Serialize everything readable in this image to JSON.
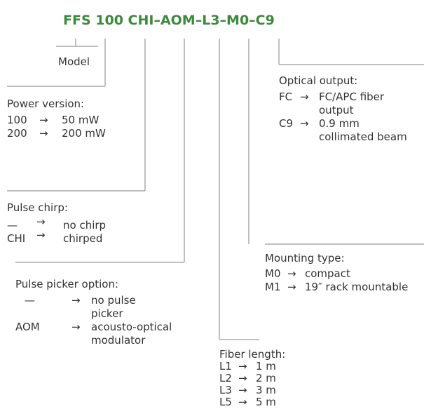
{
  "code": "FFS 100 CHI–AOM–L3–M0–C9",
  "arrow": "→",
  "groups": [
    {
      "title": "Model",
      "rows": []
    },
    {
      "title": "Power version:",
      "rows": [
        [
          "100",
          [
            "50 mW"
          ]
        ],
        [
          "200",
          [
            "200 mW"
          ]
        ]
      ]
    },
    {
      "title": "Pulse chirp:",
      "rows": [
        [
          "—",
          [
            "no chirp"
          ]
        ],
        [
          "CHI",
          [
            "chirped"
          ]
        ]
      ]
    },
    {
      "title": "Pulse picker option:",
      "rows": [
        [
          "—",
          [
            "no pulse",
            "picker"
          ]
        ],
        [
          "AOM",
          [
            "acousto-optical",
            "modulator"
          ]
        ]
      ]
    },
    {
      "title": "Fiber length:",
      "rows": [
        [
          "L1",
          [
            "1 m"
          ]
        ],
        [
          "L2",
          [
            "2 m"
          ]
        ],
        [
          "L3",
          [
            "3 m"
          ]
        ],
        [
          "L5",
          [
            "5 m"
          ]
        ]
      ]
    },
    {
      "title": "Mounting type:",
      "rows": [
        [
          "M0",
          [
            "compact"
          ]
        ],
        [
          "M1",
          [
            "19″ rack mountable"
          ]
        ]
      ]
    },
    {
      "title": "Optical output:",
      "rows": [
        [
          "FC",
          [
            "FC/APC fiber",
            "output"
          ]
        ],
        [
          "C9",
          [
            "0.9 mm",
            "collimated beam"
          ]
        ]
      ]
    }
  ]
}
